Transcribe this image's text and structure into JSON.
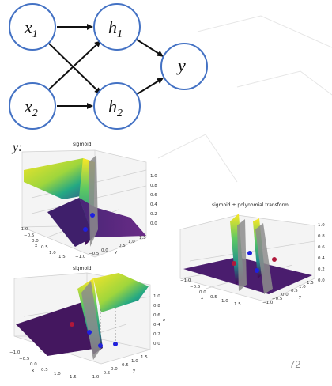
{
  "diagram": {
    "nodes": {
      "x1": {
        "base": "x",
        "sub": "1"
      },
      "x2": {
        "base": "x",
        "sub": "2"
      },
      "h1": {
        "base": "h",
        "sub": "1"
      },
      "h2": {
        "base": "h",
        "sub": "2"
      },
      "y": {
        "base": "y"
      }
    },
    "edges": [
      [
        "x1",
        "h1"
      ],
      [
        "x1",
        "h2"
      ],
      [
        "x2",
        "h1"
      ],
      [
        "x2",
        "h2"
      ],
      [
        "h1",
        "y"
      ],
      [
        "h2",
        "y"
      ]
    ],
    "node_border_color": "#4472c4"
  },
  "section_label": "y:",
  "plots": {
    "top_left": {
      "title": "sigmoid",
      "x_ticks": [
        "−1.0",
        "−0.5",
        "0.0",
        "0.5",
        "1.0",
        "1.5"
      ],
      "x_label": "x",
      "y_ticks": [
        "−1.0",
        "−0.5",
        "0.0",
        "0.5",
        "1.0",
        "1.5"
      ],
      "y_label": "y",
      "z_ticks": [
        "0.0",
        "0.2",
        "0.4",
        "0.6",
        "0.8",
        "1.0"
      ],
      "z_label": "z"
    },
    "bottom_left": {
      "title": "sigmoid",
      "x_ticks": [
        "−1.0",
        "−0.5",
        "0.0",
        "0.5",
        "1.0",
        "1.5"
      ],
      "x_label": "x",
      "y_ticks": [
        "−1.0",
        "−0.5",
        "0.0",
        "0.5",
        "1.0",
        "1.5"
      ],
      "y_label": "y",
      "z_ticks": [
        "0.0",
        "0.2",
        "0.4",
        "0.6",
        "0.8",
        "1.0"
      ],
      "z_label": "z"
    },
    "right": {
      "title": "sigmoid + polynomial transform",
      "x_ticks": [
        "−1.0",
        "−0.5",
        "0.0",
        "0.5",
        "1.0",
        "1.5"
      ],
      "x_label": "x",
      "y_ticks": [
        "−1.0",
        "−0.5",
        "0.0",
        "0.5",
        "1.0",
        "1.5"
      ],
      "y_label": "y",
      "z_ticks": [
        "0.0",
        "0.2",
        "0.4",
        "0.6",
        "0.8",
        "1.0"
      ],
      "z_label": "z"
    }
  },
  "colors": {
    "surface_high": "#f2e32a",
    "surface_mid": "#27a288",
    "surface_low": "#45175e",
    "plane": "#8c8c8c",
    "point_blue": "#1f1fe0",
    "point_red": "#b0183a"
  },
  "page_number": "72"
}
